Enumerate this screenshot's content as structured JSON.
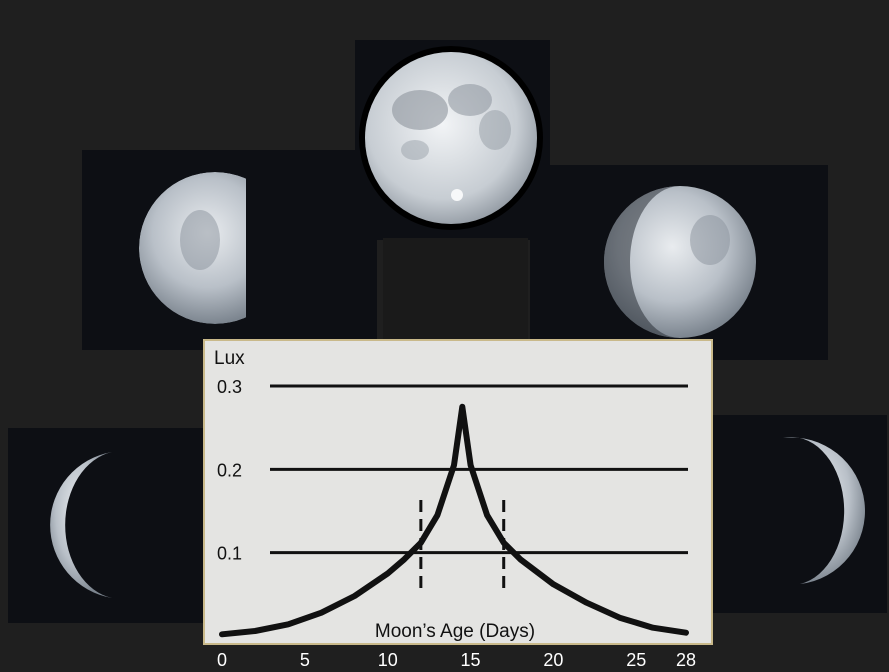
{
  "colors": {
    "background": "#1f1f1f",
    "photo_panel": "#0d0f14",
    "chart_bg": "#e4e4e2",
    "chart_border": "#c9b98a",
    "ink": "#111111",
    "axis_label_white": "#ffffff"
  },
  "phases": [
    {
      "name": "full-moon-photo",
      "illumination": 1.0,
      "lit_side": "full"
    },
    {
      "name": "waxing-gibbous-photo",
      "illumination": 0.6,
      "lit_side": "left"
    },
    {
      "name": "waning-gibbous-photo",
      "illumination": 0.6,
      "lit_side": "right"
    },
    {
      "name": "waxing-crescent-photo",
      "illumination": 0.2,
      "lit_side": "left"
    },
    {
      "name": "waning-crescent-photo",
      "illumination": 0.2,
      "lit_side": "right"
    }
  ],
  "chart_data": {
    "type": "line",
    "ylabel": "Lux",
    "xlabel": "Moon’s Age (Days)",
    "xlim": [
      0,
      28
    ],
    "ylim": [
      0,
      0.3
    ],
    "x_ticks": [
      "0",
      "5",
      "10",
      "15",
      "20",
      "25",
      "28"
    ],
    "x_tick_values": [
      0,
      5,
      10,
      15,
      20,
      25,
      28
    ],
    "y_ticks": [
      "0.1",
      "0.2",
      "0.3"
    ],
    "y_tick_values": [
      0.1,
      0.2,
      0.3
    ],
    "grid": "horizontal",
    "dashed_markers_x": [
      12,
      17
    ],
    "series": [
      {
        "x": [
          0,
          2,
          4,
          6,
          8,
          10,
          11,
          12,
          13,
          14,
          14.5,
          15,
          16,
          17,
          18,
          20,
          22,
          24,
          26,
          28
        ],
        "y": [
          0.002,
          0.006,
          0.014,
          0.028,
          0.048,
          0.075,
          0.092,
          0.112,
          0.145,
          0.205,
          0.275,
          0.205,
          0.145,
          0.112,
          0.092,
          0.062,
          0.04,
          0.022,
          0.01,
          0.004
        ]
      }
    ]
  }
}
